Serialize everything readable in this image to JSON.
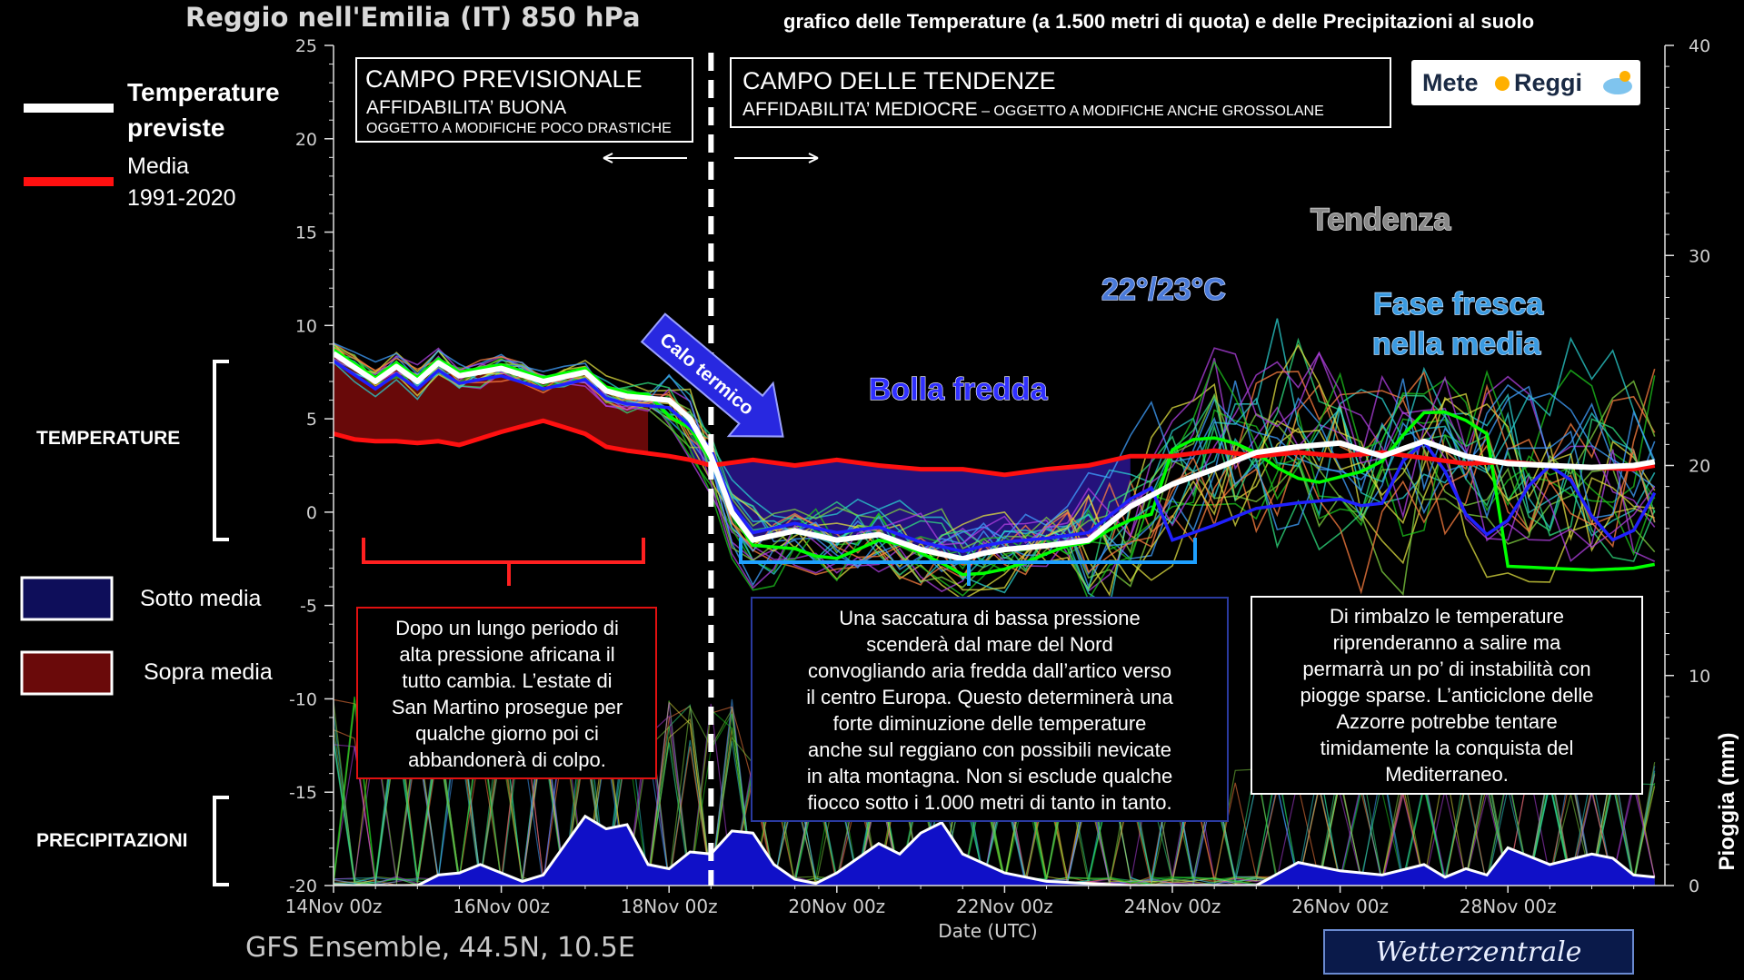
{
  "header": {
    "title": "Reggio nell'Emilia  (IT)  850 hPa",
    "subtitle": "grafico delle Temperature  (a 1.500 metri di quota) e delle Precipitazioni al suolo"
  },
  "legend": {
    "forecast_label_1": "Temperature",
    "forecast_label_2": "previste",
    "mean_label_1": "Media",
    "mean_label_2": "1991-2020",
    "below_label": "Sotto media",
    "above_label": "Sopra media",
    "temperature_section": "TEMPERATURE",
    "precip_section": "PRECIPITAZIONI"
  },
  "boxes": {
    "forecast_title": "CAMPO PREVISIONALE",
    "forecast_reliability": "AFFIDABILITA’ BUONA",
    "forecast_note": "OGGETTO A MODIFICHE POCO DRASTICHE",
    "trend_title": "CAMPO DELLE TENDENZE",
    "trend_reliability": "AFFIDABILITA’ MEDIOCRE",
    "trend_note": " – OGGETTO A MODIFICHE ANCHE GROSSOLANE"
  },
  "logo": {
    "part1": "Mete",
    "part2": "Reggi"
  },
  "annotations": {
    "cooling": "Calo termico",
    "cold_bubble": "Bolla fredda",
    "temps": "22°/23°C",
    "trend": "Tendenza",
    "cool_phase_1": "Fase fresca",
    "cool_phase_2": "nella media"
  },
  "notes": {
    "left": [
      "Dopo un lungo periodo di",
      "alta pressione africana il",
      "tutto cambia. L’estate di",
      "San Martino prosegue per",
      "qualche giorno poi ci",
      "abbandonerà di colpo."
    ],
    "middle": [
      "Una saccatura di bassa pressione",
      "scenderà dal mare del Nord",
      "convogliando aria fredda dall’artico verso",
      "il centro Europa. Questo determinerà una",
      "forte diminuzione delle temperature",
      "anche sul reggiano con possibili nevicate",
      "in alta montagna. Non si esclude qualche",
      "fiocco sotto i 1.000 metri di tanto in tanto."
    ],
    "right": [
      "Di rimbalzo le temperature",
      "riprenderanno a salire ma",
      "permarrà un po’ di instabilità con",
      "piogge sparse. L’anticiclone delle",
      "Azzorre potrebbe tentare",
      "timidamente la conquista del",
      "Mediterraneo."
    ]
  },
  "footer": {
    "model": "GFS Ensemble, 44.5N, 10.5E",
    "source": "Wetterzentrale"
  },
  "chart_data": {
    "type": "line",
    "xlabel": "Date (UTC)",
    "ylabel_right": "Pioggia (mm)",
    "x_ticks": [
      "14Nov 00z",
      "16Nov 00z",
      "18Nov 00z",
      "20Nov 00z",
      "22Nov 00z",
      "24Nov 00z",
      "26Nov 00z",
      "28Nov 00z"
    ],
    "x_range_days": [
      0,
      15.75
    ],
    "y_left": {
      "min": -20,
      "max": 25,
      "ticks": [
        25,
        20,
        15,
        10,
        5,
        0,
        -5,
        -10,
        -15,
        -20
      ]
    },
    "y_right": {
      "min": 0,
      "max": 40,
      "ticks": [
        40,
        30,
        20,
        10,
        0
      ]
    },
    "forecast_boundary_day": 4.5,
    "temperature_forecast": {
      "x": [
        0,
        0.5,
        0.75,
        1,
        1.25,
        1.5,
        2,
        2.5,
        3,
        3.25,
        3.5,
        4,
        4.25,
        4.5,
        4.75,
        5,
        5.5,
        6,
        6.5,
        7,
        7.5,
        7.75,
        8,
        8.5,
        9,
        9.5,
        10,
        10.5,
        11,
        11.5,
        12,
        12.5,
        13,
        13.5,
        14,
        14.5,
        15,
        15.5,
        15.75
      ],
      "y": [
        8.5,
        7,
        7.8,
        7,
        8,
        7.3,
        7.7,
        7,
        7.5,
        6.5,
        6.2,
        6,
        5,
        3,
        0,
        -1.5,
        -1,
        -1.5,
        -1.2,
        -2,
        -2.5,
        -2.2,
        -2,
        -1.8,
        -1.5,
        0.3,
        1.5,
        2.3,
        3.2,
        3.5,
        3.7,
        3,
        3.8,
        3,
        2.6,
        2.5,
        2.4,
        2.5,
        2.7
      ]
    },
    "temperature_mean": {
      "x": [
        0,
        0.25,
        0.5,
        0.75,
        1,
        1.25,
        1.5,
        2,
        2.5,
        3,
        3.25,
        3.5,
        4,
        4.25,
        4.5,
        5,
        5.5,
        6,
        6.5,
        7,
        7.5,
        8,
        8.5,
        9,
        9.5,
        10,
        10.5,
        11,
        11.5,
        12,
        12.5,
        13,
        13.5,
        14,
        14.5,
        15,
        15.5,
        15.75
      ],
      "y": [
        4.2,
        3.9,
        3.8,
        3.8,
        3.7,
        3.8,
        3.6,
        4.3,
        4.9,
        4.2,
        3.5,
        3.3,
        3.0,
        2.8,
        2.5,
        2.8,
        2.5,
        2.8,
        2.5,
        2.3,
        2.3,
        2.0,
        2.3,
        2.5,
        3.0,
        3.0,
        3.3,
        3.0,
        3.2,
        3.0,
        3.2,
        2.9,
        2.6,
        2.7,
        2.5,
        2.4,
        2.3,
        2.5
      ]
    },
    "ensemble_colors": [
      "#1ec41e",
      "#2bd0d0",
      "#e0e040",
      "#b040e0",
      "#ff8040",
      "#40a0ff",
      "#30e080",
      "#80d040"
    ],
    "control_colors": {
      "green": "#00ff00",
      "blue": "#2020ff"
    },
    "fill_colors": {
      "above": "#7a0a0a",
      "below": "#2a1590"
    },
    "precipitation_mm": {
      "x": [
        0,
        1,
        1.25,
        1.5,
        1.75,
        2,
        2.25,
        2.5,
        3,
        3.25,
        3.5,
        3.75,
        4,
        4.25,
        4.5,
        4.75,
        5,
        5.25,
        5.5,
        5.75,
        6,
        6.5,
        6.75,
        7,
        7.25,
        7.5,
        8,
        8.5,
        9,
        9.5,
        10,
        11,
        11.5,
        11.75,
        12,
        12.5,
        13,
        13.25,
        13.5,
        13.75,
        14,
        14.5,
        15,
        15.25,
        15.5,
        15.75
      ],
      "y": [
        0,
        0,
        0.5,
        0.6,
        1,
        0.6,
        0.2,
        0.5,
        3.3,
        2.7,
        2.9,
        1.0,
        0.8,
        1.6,
        1.5,
        2.6,
        2.5,
        1.0,
        0.3,
        0.1,
        0.6,
        2.0,
        1.5,
        2.5,
        3.0,
        1.5,
        0.6,
        0.2,
        0.1,
        0,
        0,
        0,
        1.1,
        0.9,
        0.7,
        0.5,
        1.0,
        0.4,
        0.8,
        0.5,
        1.8,
        1.0,
        1.5,
        1.3,
        0.5,
        0.4
      ]
    }
  }
}
